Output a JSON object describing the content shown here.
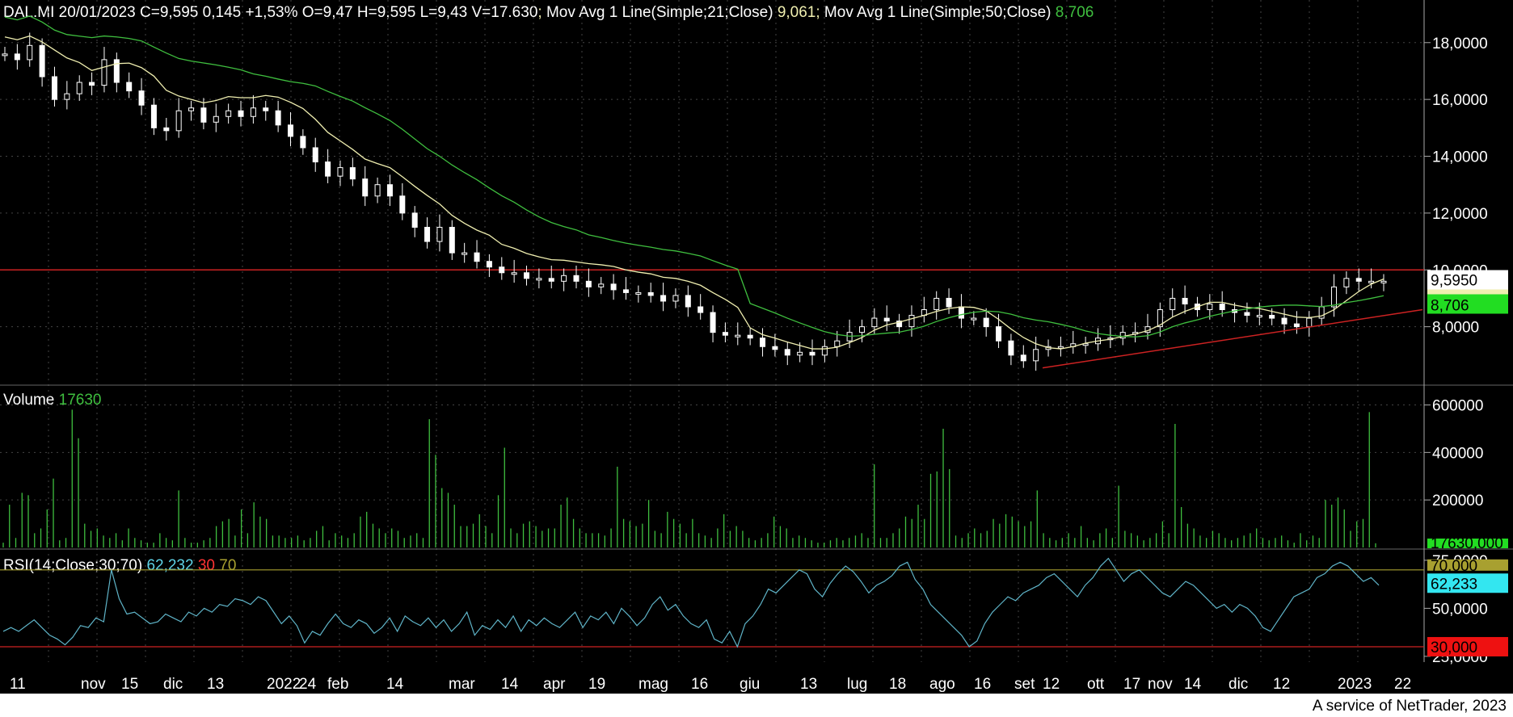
{
  "header": {
    "ticker": "DAL.MI",
    "date": "20/01/2023",
    "close": "C=9,595",
    "change": "0,145",
    "change_pct": "+1,53%",
    "open": "O=9,47",
    "high": "H=9,595",
    "low": "L=9,43",
    "volume": "V=17.630",
    "ma1_label": "Mov Avg 1 Line(Simple;21;Close)",
    "ma1_value": "9,061",
    "ma2_label": "Mov Avg 1 Line(Simple;50;Close)",
    "ma2_value": "8,706"
  },
  "volume_header": {
    "label": "Volume",
    "value": "17630"
  },
  "rsi_header": {
    "label": "RSI(14;Close;30;70)",
    "value": "62,232",
    "low": "30",
    "high": "70"
  },
  "footer": {
    "text": "A service of NetTrader, 2023"
  },
  "colors": {
    "background": "#000000",
    "candle": "#ffffff",
    "ma21": "#f0efb0",
    "ma50": "#3fbf3f",
    "volume": "#3fbf3f",
    "rsi": "#5fb4c8",
    "hline": "#cc2222",
    "trend": "#cc2222",
    "grid": "#444444"
  },
  "chart_data": [
    {
      "type": "candlestick",
      "title": "DAL.MI",
      "y_ticks": [
        "18,0000",
        "16,0000",
        "14,0000",
        "12,0000",
        "10,0000",
        "8,0000"
      ],
      "ylim": [
        6.0,
        19.5
      ],
      "x_ticks": [
        "11",
        "nov",
        "15",
        "dic",
        "13",
        "2022",
        "24",
        "feb",
        "14",
        "mar",
        "14",
        "apr",
        "19",
        "mag",
        "16",
        "giu",
        "13",
        "lug",
        "18",
        "ago",
        "16",
        "set",
        "12",
        "ott",
        "17",
        "nov",
        "14",
        "dic",
        "12",
        "2023",
        "22"
      ],
      "horizontal_line": 10.0,
      "trend_line": {
        "from": [
          "set 2022",
          6.5
        ],
        "to": [
          "gen 2023",
          8.35
        ]
      },
      "last_close": {
        "value": "9,5950"
      },
      "ma21_last": {
        "value": "9,061"
      },
      "ma50_last": {
        "value": "8,706"
      },
      "close_series": [
        17.6,
        17.4,
        17.9,
        16.8,
        16.0,
        16.2,
        16.6,
        16.5,
        17.4,
        16.6,
        16.3,
        15.8,
        15.0,
        14.9,
        15.6,
        15.7,
        15.2,
        15.4,
        15.6,
        15.4,
        15.7,
        15.6,
        15.1,
        14.7,
        14.3,
        13.8,
        13.3,
        13.6,
        13.2,
        12.6,
        13.0,
        12.6,
        12.0,
        11.5,
        11.0,
        11.5,
        10.6,
        10.6,
        10.3,
        10.1,
        9.9,
        9.9,
        9.7,
        9.7,
        9.6,
        9.8,
        9.6,
        9.4,
        9.5,
        9.3,
        9.2,
        9.2,
        9.1,
        8.9,
        9.1,
        8.7,
        8.5,
        7.8,
        7.7,
        7.7,
        7.6,
        7.3,
        7.2,
        7.0,
        7.1,
        7.0,
        7.3,
        7.5,
        7.8,
        8.0,
        8.3,
        8.2,
        8.0,
        8.4,
        8.6,
        9.0,
        8.7,
        8.3,
        8.3,
        8.0,
        7.5,
        7.0,
        6.8,
        7.2,
        7.3,
        7.3,
        7.4,
        7.4,
        7.6,
        7.6,
        7.8,
        7.8,
        8.0,
        8.6,
        9.0,
        8.8,
        8.6,
        8.8,
        8.6,
        8.5,
        8.4,
        8.4,
        8.3,
        8.1,
        8.0,
        8.3,
        8.7,
        9.4,
        9.7,
        9.6,
        9.6,
        9.6
      ]
    },
    {
      "type": "bar",
      "title": "Volume",
      "y_ticks": [
        "600000",
        "400000",
        "200000"
      ],
      "ylim": [
        0,
        680000
      ],
      "last_value": "17630,000",
      "values": [
        20000,
        180000,
        40000,
        230000,
        220000,
        60000,
        80000,
        160000,
        290000,
        30000,
        40000,
        580000,
        460000,
        100000,
        70000,
        80000,
        50000,
        40000,
        60000,
        30000,
        80000,
        40000,
        30000,
        20000,
        20000,
        60000,
        40000,
        30000,
        240000,
        40000,
        20000,
        20000,
        30000,
        40000,
        90000,
        110000,
        120000,
        50000,
        160000,
        60000,
        190000,
        130000,
        120000,
        50000,
        50000,
        40000,
        40000,
        50000,
        30000,
        40000,
        70000,
        90000,
        30000,
        60000,
        50000,
        40000,
        60000,
        130000,
        150000,
        100000,
        80000,
        60000,
        80000,
        70000,
        40000,
        50000,
        60000,
        40000,
        540000,
        390000,
        250000,
        230000,
        180000,
        90000,
        90000,
        100000,
        140000,
        90000,
        60000,
        220000,
        420000,
        80000,
        60000,
        100000,
        110000,
        90000,
        70000,
        80000,
        80000,
        180000,
        210000,
        120000,
        80000,
        60000,
        60000,
        60000,
        50000,
        80000,
        340000,
        120000,
        110000,
        90000,
        100000,
        200000,
        70000,
        60000,
        150000,
        120000,
        100000,
        60000,
        120000,
        60000,
        50000,
        40000,
        80000,
        140000,
        70000,
        90000,
        70000,
        40000,
        30000,
        40000,
        60000,
        130000,
        90000,
        80000,
        40000,
        50000,
        40000,
        30000,
        20000,
        20000,
        30000,
        40000,
        30000,
        40000,
        50000,
        60000,
        40000,
        350000,
        40000,
        40000,
        60000,
        80000,
        130000,
        120000,
        180000,
        120000,
        310000,
        320000,
        500000,
        330000,
        50000,
        40000,
        60000,
        80000,
        60000,
        70000,
        120000,
        100000,
        140000,
        130000,
        110000,
        90000,
        110000,
        240000,
        60000,
        40000,
        30000,
        40000,
        60000,
        40000,
        90000,
        40000,
        30000,
        60000,
        80000,
        40000,
        260000,
        70000,
        60000,
        50000,
        30000,
        40000,
        60000,
        110000,
        60000,
        520000,
        170000,
        100000,
        80000,
        50000,
        40000,
        70000,
        60000,
        40000,
        30000,
        40000,
        50000,
        60000,
        80000,
        40000,
        30000,
        40000,
        50000,
        30000,
        20000,
        60000,
        30000,
        50000,
        40000,
        200000,
        180000,
        210000,
        160000,
        70000,
        110000,
        120000,
        570000,
        17630
      ]
    },
    {
      "type": "line",
      "title": "RSI(14;Close;30;70)",
      "y_ticks": [
        "75,0000",
        "50,0000",
        "25,0000"
      ],
      "ylim": [
        22,
        80
      ],
      "levels": [
        30,
        70
      ],
      "level_labels": [
        "30,000",
        "70,000"
      ],
      "last_value": "62,233",
      "values": [
        38,
        40,
        38,
        41,
        44,
        40,
        36,
        34,
        31,
        35,
        41,
        40,
        45,
        43,
        70,
        55,
        47,
        48,
        45,
        42,
        43,
        47,
        45,
        43,
        48,
        46,
        50,
        48,
        52,
        51,
        55,
        54,
        52,
        56,
        54,
        48,
        42,
        46,
        41,
        32,
        38,
        36,
        42,
        47,
        42,
        40,
        44,
        42,
        37,
        40,
        45,
        38,
        46,
        43,
        41,
        45,
        40,
        44,
        38,
        42,
        48,
        36,
        41,
        39,
        44,
        40,
        46,
        38,
        44,
        41,
        45,
        42,
        40,
        44,
        48,
        40,
        46,
        44,
        48,
        42,
        50,
        46,
        41,
        45,
        52,
        56,
        49,
        52,
        46,
        42,
        40,
        44,
        34,
        32,
        38,
        30,
        42,
        46,
        52,
        60,
        58,
        62,
        66,
        70,
        68,
        60,
        56,
        63,
        68,
        72,
        69,
        64,
        58,
        62,
        64,
        67,
        72,
        74,
        65,
        60,
        52,
        48,
        44,
        40,
        36,
        30,
        33,
        42,
        48,
        52,
        56,
        54,
        58,
        60,
        62,
        66,
        68,
        64,
        60,
        56,
        62,
        66,
        72,
        76,
        70,
        64,
        68,
        70,
        66,
        62,
        58,
        56,
        60,
        64,
        62,
        58,
        54,
        50,
        52,
        48,
        52,
        50,
        46,
        40,
        38,
        44,
        50,
        56,
        58,
        60,
        66,
        68,
        72,
        74,
        72,
        68,
        64,
        66,
        62
      ]
    }
  ]
}
